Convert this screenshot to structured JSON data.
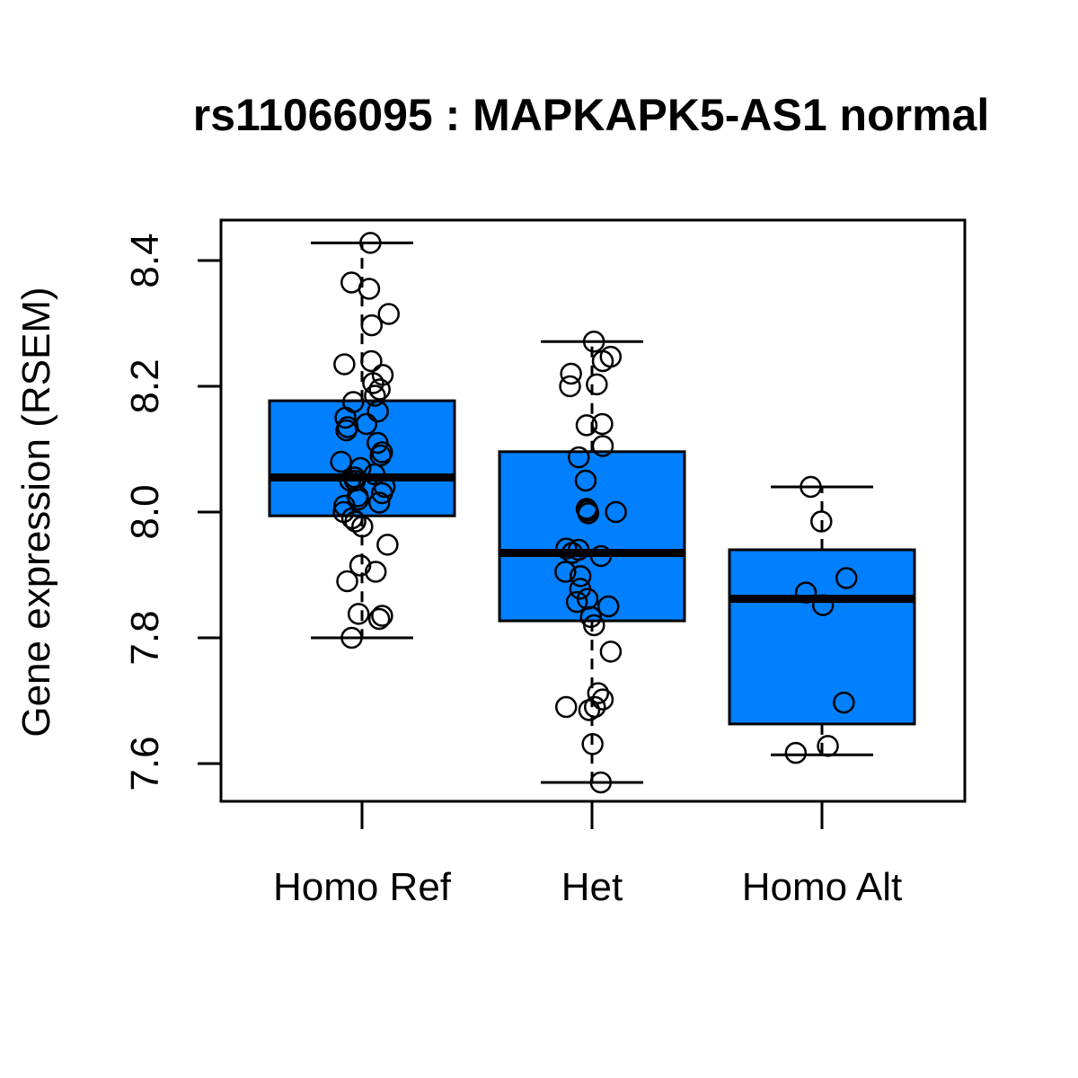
{
  "chart_data": {
    "type": "box",
    "title": "rs11066095 : MAPKAPK5-AS1 normal",
    "xlabel": "",
    "ylabel": "Gene expression (RSEM)",
    "ylim": [
      7.55,
      8.47
    ],
    "yticks": [
      "7.6",
      "7.8",
      "8.0",
      "8.2",
      "8.4"
    ],
    "box_color": "#0080ff",
    "grid": false,
    "categories": [
      "Homo Ref",
      "Het",
      "Homo Alt"
    ],
    "boxes": [
      {
        "category": "Homo Ref",
        "whisker_low": 7.8,
        "q1": 7.994,
        "median": 8.055,
        "q3": 8.177,
        "whisker_high": 8.428
      },
      {
        "category": "Het",
        "whisker_low": 7.57,
        "q1": 7.827,
        "median": 7.935,
        "q3": 8.096,
        "whisker_high": 8.271
      },
      {
        "category": "Homo Alt",
        "whisker_low": 7.614,
        "q1": 7.663,
        "median": 7.862,
        "q3": 7.94,
        "whisker_high": 8.04
      }
    ],
    "points": [
      [
        8.428,
        8.365,
        8.355,
        8.315,
        8.297,
        8.24,
        8.235,
        8.218,
        8.205,
        8.195,
        8.185,
        8.175,
        8.16,
        8.15,
        8.14,
        8.135,
        8.13,
        8.11,
        8.095,
        8.09,
        8.08,
        8.07,
        8.06,
        8.055,
        8.05,
        8.05,
        8.04,
        8.03,
        8.025,
        8.02,
        8.015,
        8.01,
        8.0,
        7.99,
        7.985,
        7.977,
        7.948,
        7.915,
        7.905,
        7.89,
        7.838,
        7.835,
        7.83,
        7.8
      ],
      [
        8.271,
        8.247,
        8.24,
        8.22,
        8.203,
        8.2,
        8.14,
        8.138,
        8.105,
        8.087,
        8.05,
        8.005,
        8.002,
        8.0,
        7.998,
        7.942,
        7.94,
        7.935,
        7.93,
        7.905,
        7.898,
        7.878,
        7.862,
        7.857,
        7.85,
        7.833,
        7.82,
        7.778,
        7.712,
        7.702,
        7.69,
        7.69,
        7.685,
        7.631,
        7.57
      ],
      [
        8.04,
        7.985,
        7.895,
        7.872,
        7.852,
        7.697,
        7.628,
        7.617
      ]
    ]
  }
}
